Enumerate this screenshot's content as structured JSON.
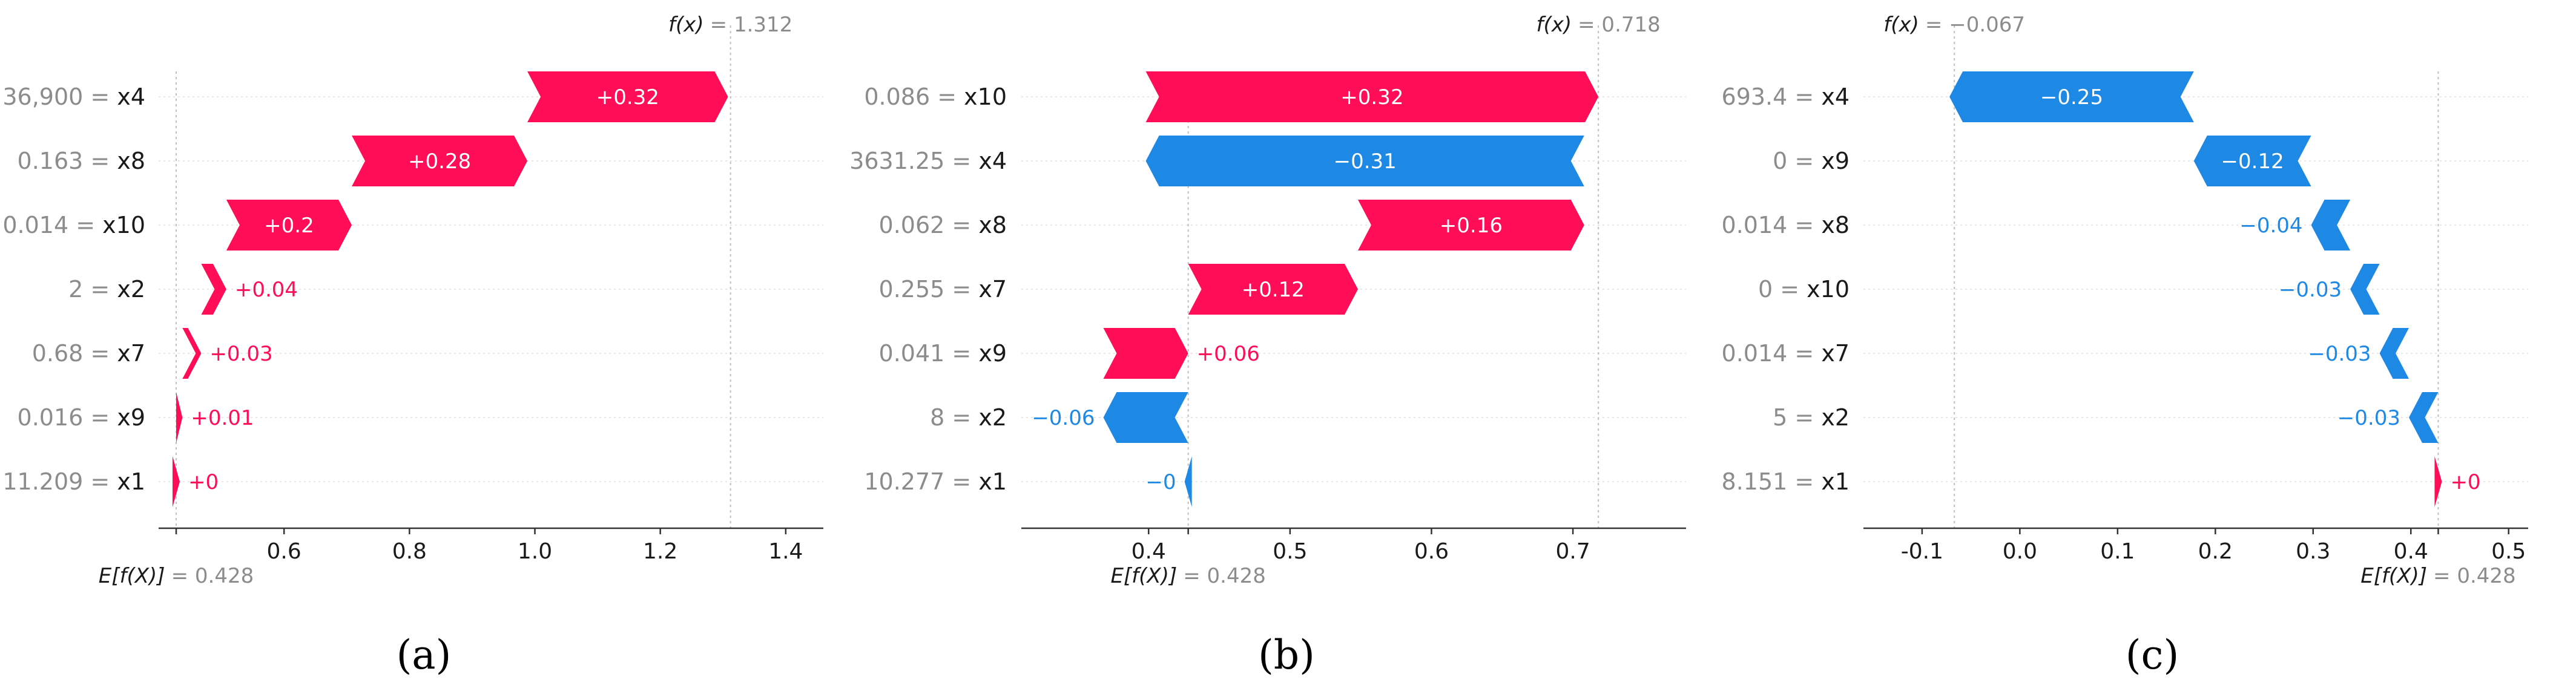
{
  "figure_captions": [
    "(a)",
    "(b)",
    "(c)"
  ],
  "colors": {
    "positive": "#ff0d57",
    "negative": "#1e88e5",
    "axis": "#333333",
    "grid": "#e6e6e6",
    "dotted": "#c0c0c0",
    "muted": "#8c8c8c"
  },
  "chart_data": [
    {
      "type": "waterfall",
      "panel": "(a)",
      "base_value": 0.428,
      "base_label": "E[f(X)]",
      "base_text": "= 0.428",
      "output_value": 1.312,
      "output_label": "f(x)",
      "output_text": "= 1.312",
      "xlim": [
        0.4,
        1.46
      ],
      "xticks": [
        0.6,
        0.8,
        1.0,
        1.2,
        1.4
      ],
      "xtick_labels": [
        "0.6",
        "0.8",
        "1.0",
        "1.2",
        "1.4"
      ],
      "features": [
        {
          "value": "36,900",
          "name": "x4",
          "contribution": 0.32,
          "label": "+0.32"
        },
        {
          "value": "0.163",
          "name": "x8",
          "contribution": 0.28,
          "label": "+0.28"
        },
        {
          "value": "0.014",
          "name": "x10",
          "contribution": 0.2,
          "label": "+0.2"
        },
        {
          "value": "2",
          "name": "x2",
          "contribution": 0.04,
          "label": "+0.04"
        },
        {
          "value": "0.68",
          "name": "x7",
          "contribution": 0.03,
          "label": "+0.03"
        },
        {
          "value": "0.016",
          "name": "x9",
          "contribution": 0.01,
          "label": "+0.01"
        },
        {
          "value": "11.209",
          "name": "x1",
          "contribution": 0.0,
          "label": "+0"
        }
      ]
    },
    {
      "type": "waterfall",
      "panel": "(b)",
      "base_value": 0.428,
      "base_label": "E[f(X)]",
      "base_text": "= 0.428",
      "output_value": 0.718,
      "output_label": "f(x)",
      "output_text": "= 0.718",
      "xlim": [
        0.31,
        0.78
      ],
      "xticks": [
        0.4,
        0.5,
        0.6,
        0.7
      ],
      "xtick_labels": [
        "0.4",
        "0.5",
        "0.6",
        "0.7"
      ],
      "features": [
        {
          "value": "0.086",
          "name": "x10",
          "contribution": 0.32,
          "label": "+0.32"
        },
        {
          "value": "3631.25",
          "name": "x4",
          "contribution": -0.31,
          "label": "−0.31"
        },
        {
          "value": "0.062",
          "name": "x8",
          "contribution": 0.16,
          "label": "+0.16"
        },
        {
          "value": "0.255",
          "name": "x7",
          "contribution": 0.12,
          "label": "+0.12"
        },
        {
          "value": "0.041",
          "name": "x9",
          "contribution": 0.06,
          "label": "+0.06"
        },
        {
          "value": "8",
          "name": "x2",
          "contribution": -0.06,
          "label": "−0.06"
        },
        {
          "value": "10.277",
          "name": "x1",
          "contribution": -0.0,
          "label": "−0"
        }
      ]
    },
    {
      "type": "waterfall",
      "panel": "(c)",
      "base_value": 0.428,
      "base_label": "E[f(X)]",
      "base_text": "= 0.428",
      "output_value": -0.067,
      "output_label": "f(x)",
      "output_text": "= −0.067",
      "xlim": [
        -0.16,
        0.52
      ],
      "xticks": [
        -0.1,
        0.0,
        0.1,
        0.2,
        0.3,
        0.4,
        0.5
      ],
      "xtick_labels": [
        "-0.1",
        "0.0",
        "0.1",
        "0.2",
        "0.3",
        "0.4",
        "0.5"
      ],
      "features": [
        {
          "value": "693.4",
          "name": "x4",
          "contribution": -0.25,
          "label": "−0.25"
        },
        {
          "value": "0",
          "name": "x9",
          "contribution": -0.12,
          "label": "−0.12"
        },
        {
          "value": "0.014",
          "name": "x8",
          "contribution": -0.04,
          "label": "−0.04"
        },
        {
          "value": "0",
          "name": "x10",
          "contribution": -0.03,
          "label": "−0.03"
        },
        {
          "value": "0.014",
          "name": "x7",
          "contribution": -0.03,
          "label": "−0.03"
        },
        {
          "value": "5",
          "name": "x2",
          "contribution": -0.03,
          "label": "−0.03"
        },
        {
          "value": "8.151",
          "name": "x1",
          "contribution": 0.0,
          "label": "+0"
        }
      ]
    }
  ]
}
